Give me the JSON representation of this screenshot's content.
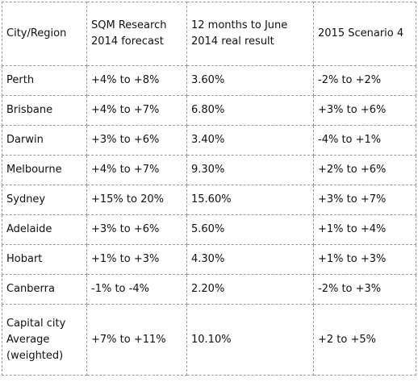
{
  "table": {
    "headers": [
      "City/Region",
      "SQM Research 2014 forecast",
      "12 months to June 2014 real result",
      "2015 Scenario 4"
    ],
    "rows": [
      [
        "Perth",
        "+4% to +8%",
        "3.60%",
        "-2% to +2%"
      ],
      [
        "Brisbane",
        "+4% to +7%",
        "6.80%",
        "+3% to +6%"
      ],
      [
        "Darwin",
        "+3% to +6%",
        "3.40%",
        "-4% to +1%"
      ],
      [
        "Melbourne",
        "+4% to +7%",
        "9.30%",
        "+2% to +6%"
      ],
      [
        "Sydney",
        "+15% to 20%",
        "15.60%",
        "+3% to +7%"
      ],
      [
        "Adelaide",
        "+3% to +6%",
        "5.60%",
        "+1% to +4%"
      ],
      [
        "Hobart",
        "+1% to +3%",
        "4.30%",
        "+1% to +3%"
      ],
      [
        "Canberra",
        "-1% to -4%",
        "2.20%",
        "-2% to +3%"
      ],
      [
        "Capital city Average (weighted)",
        "+7% to +11%",
        "10.10%",
        "+2 to +5%"
      ]
    ]
  }
}
